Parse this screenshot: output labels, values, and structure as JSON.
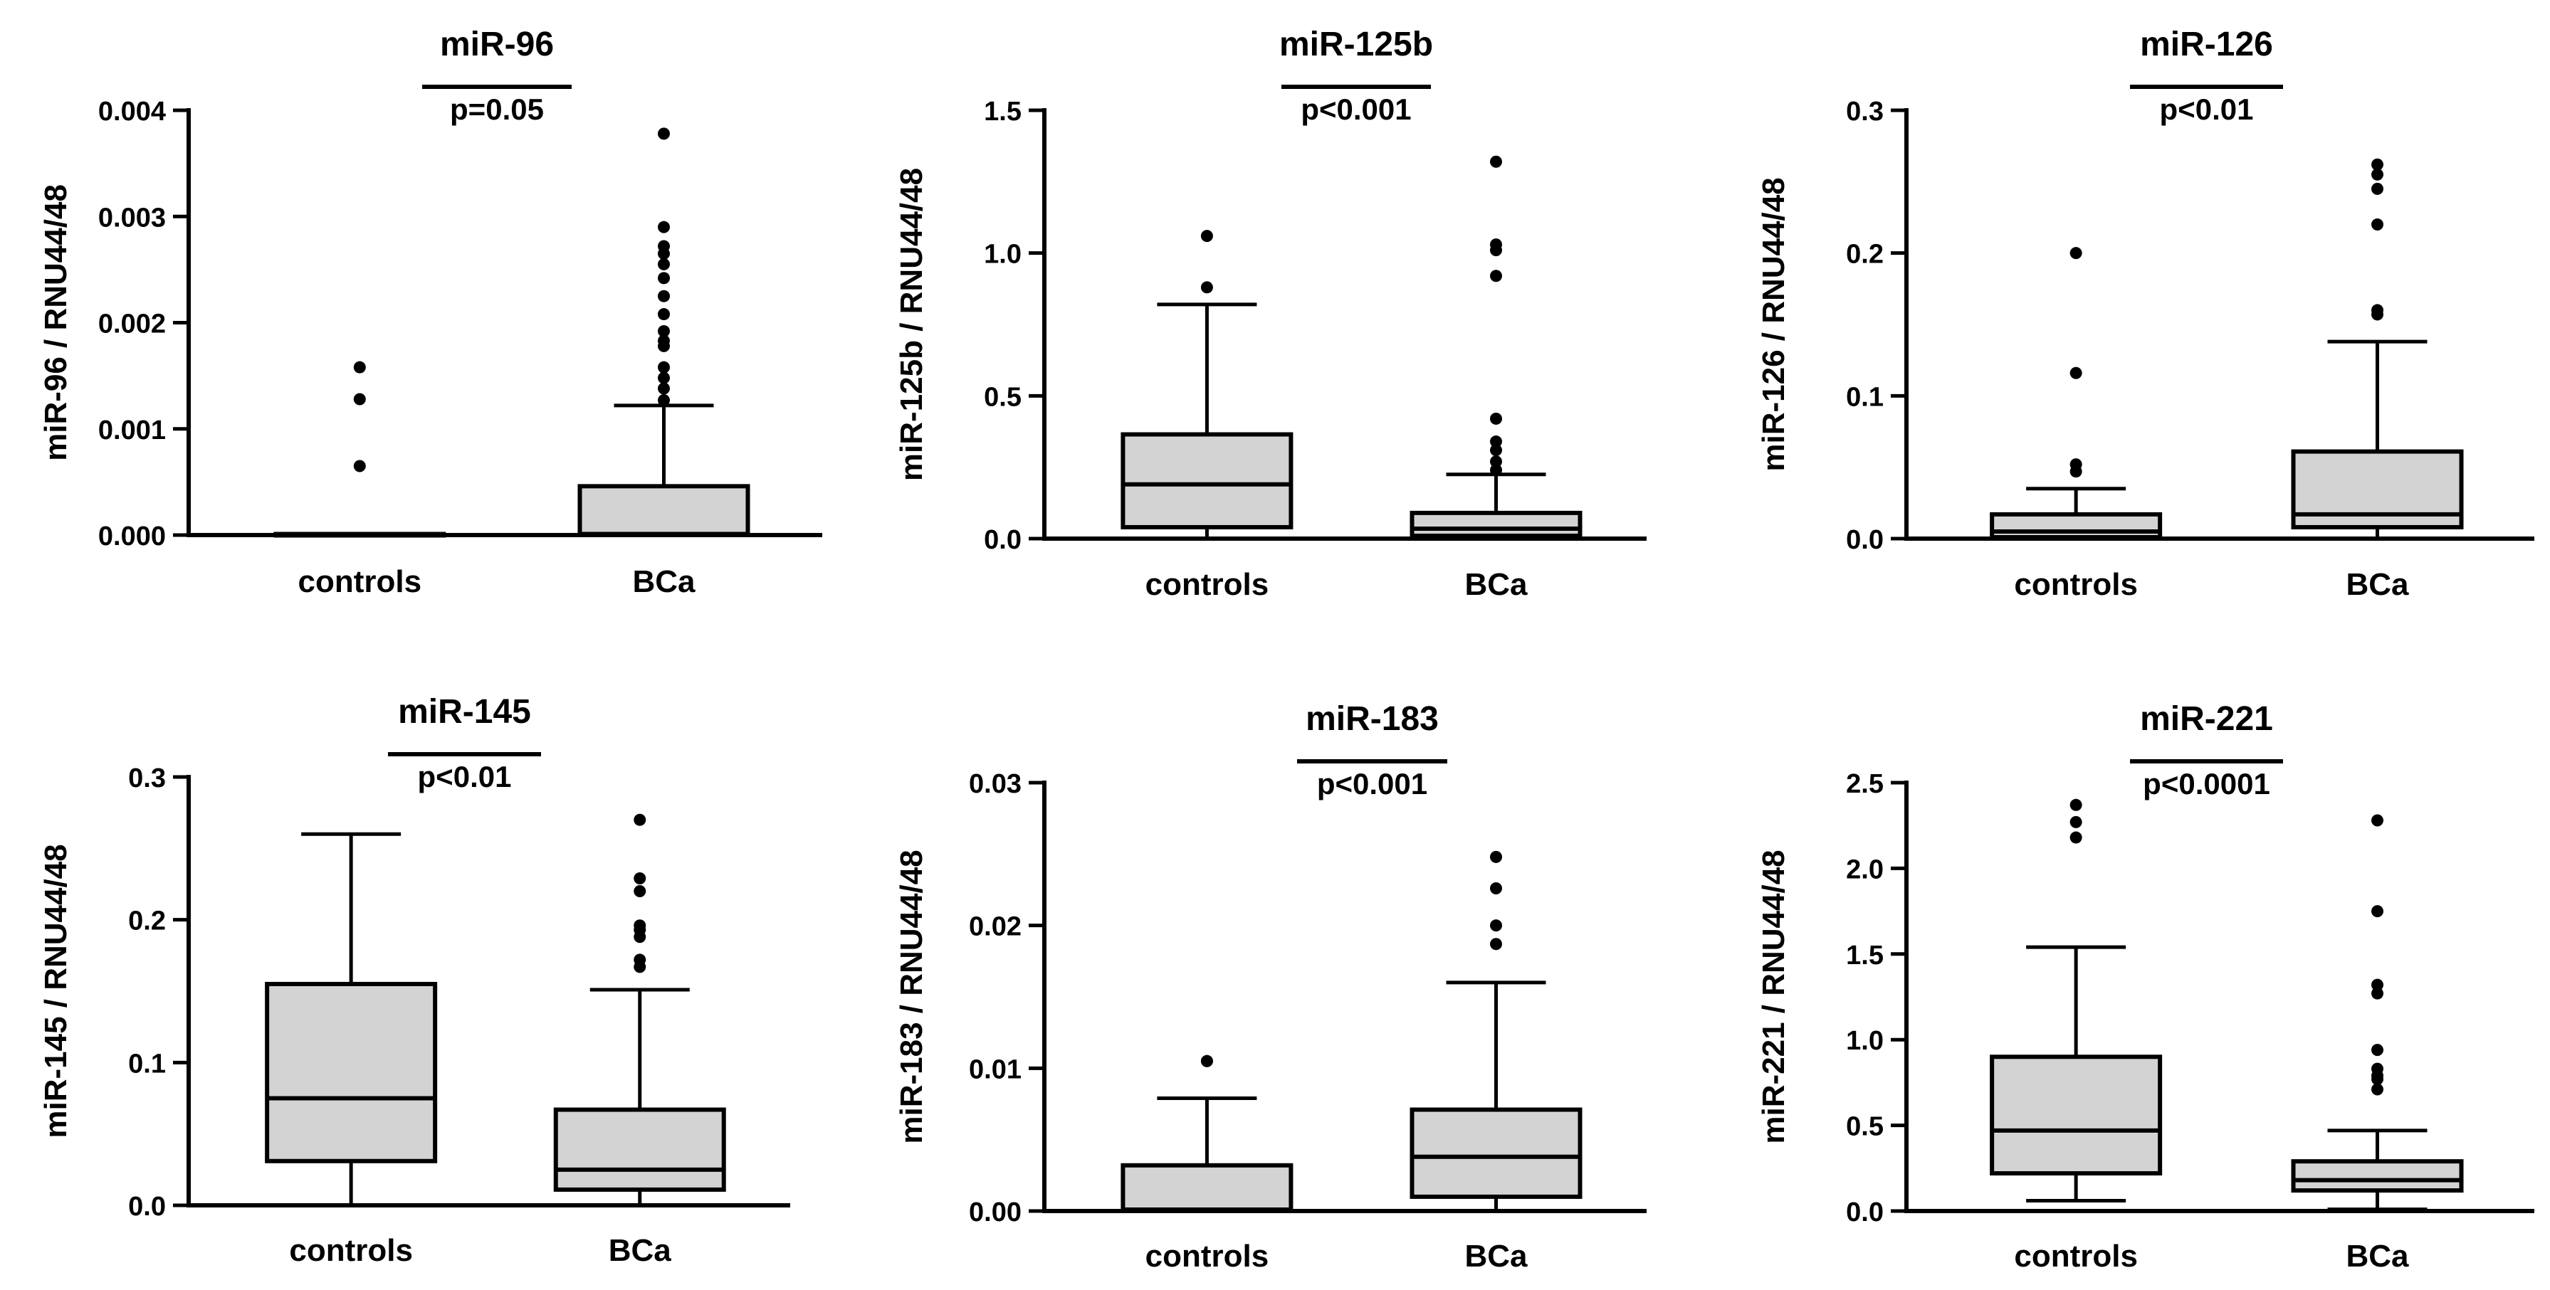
{
  "chart_data": [
    {
      "type": "box",
      "title": "miR-96",
      "ylabel": "miR-96 / RNU44/48",
      "ylim": [
        0,
        0.004
      ],
      "yticks": [
        0,
        0.001,
        0.002,
        0.003,
        0.004
      ],
      "ytick_labels": [
        "0.000",
        "0.001",
        "0.002",
        "0.003",
        "0.004"
      ],
      "p_value": "p=0.05",
      "groups": [
        {
          "name": "controls",
          "q1": 0.0,
          "median": 0.0,
          "q3": 1e-05,
          "whisker_low": 0.0,
          "whisker_high": 1e-05,
          "outliers": [
            0.00065,
            0.00128,
            0.00158
          ]
        },
        {
          "name": "BCa",
          "q1": 0.0,
          "median": 1e-05,
          "q3": 0.00046,
          "whisker_low": 0.0,
          "whisker_high": 0.00122,
          "outliers": [
            0.00127,
            0.00138,
            0.00148,
            0.00158,
            0.00178,
            0.00183,
            0.00192,
            0.00208,
            0.00225,
            0.00242,
            0.00255,
            0.00265,
            0.00272,
            0.0029,
            0.00378
          ]
        }
      ]
    },
    {
      "type": "box",
      "title": "miR-125b",
      "ylabel": "miR-125b / RNU44/48",
      "ylim": [
        0,
        1.5
      ],
      "yticks": [
        0,
        0.5,
        1.0,
        1.5
      ],
      "ytick_labels": [
        "0.0",
        "0.5",
        "1.0",
        "1.5"
      ],
      "p_value": "p<0.001",
      "groups": [
        {
          "name": "controls",
          "q1": 0.04,
          "median": 0.19,
          "q3": 0.365,
          "whisker_low": 0.0,
          "whisker_high": 0.82,
          "outliers": [
            0.88,
            1.06
          ]
        },
        {
          "name": "BCa",
          "q1": 0.01,
          "median": 0.035,
          "q3": 0.09,
          "whisker_low": 0.0,
          "whisker_high": 0.225,
          "outliers": [
            0.24,
            0.27,
            0.31,
            0.34,
            0.42,
            0.92,
            1.01,
            1.03,
            1.32
          ]
        }
      ]
    },
    {
      "type": "box",
      "title": "miR-126",
      "ylabel": "miR-126 / RNU44/48",
      "ylim": [
        0,
        0.3
      ],
      "yticks": [
        0,
        0.1,
        0.2,
        0.3
      ],
      "ytick_labels": [
        "0.0",
        "0.1",
        "0.2",
        "0.3"
      ],
      "p_value": "p<0.01",
      "groups": [
        {
          "name": "controls",
          "q1": 0.001,
          "median": 0.005,
          "q3": 0.017,
          "whisker_low": 0.0,
          "whisker_high": 0.035,
          "outliers": [
            0.047,
            0.052,
            0.116,
            0.2
          ]
        },
        {
          "name": "BCa",
          "q1": 0.008,
          "median": 0.017,
          "q3": 0.061,
          "whisker_low": 0.0,
          "whisker_high": 0.138,
          "outliers": [
            0.157,
            0.16,
            0.22,
            0.245,
            0.255,
            0.262
          ]
        }
      ]
    },
    {
      "type": "box",
      "title": "miR-145",
      "ylabel": "miR-145 / RNU44/48",
      "ylim": [
        0,
        0.3
      ],
      "yticks": [
        0,
        0.1,
        0.2,
        0.3
      ],
      "ytick_labels": [
        "0.0",
        "0.1",
        "0.2",
        "0.3"
      ],
      "p_value": "p<0.01",
      "groups": [
        {
          "name": "controls",
          "q1": 0.031,
          "median": 0.075,
          "q3": 0.155,
          "whisker_low": 0.0,
          "whisker_high": 0.26,
          "outliers": []
        },
        {
          "name": "BCa",
          "q1": 0.011,
          "median": 0.025,
          "q3": 0.067,
          "whisker_low": 0.0,
          "whisker_high": 0.151,
          "outliers": [
            0.167,
            0.172,
            0.188,
            0.193,
            0.196,
            0.22,
            0.229,
            0.27
          ]
        }
      ]
    },
    {
      "type": "box",
      "title": "miR-183",
      "ylabel": "miR-183 / RNU44/48",
      "ylim": [
        0,
        0.03
      ],
      "yticks": [
        0,
        0.01,
        0.02,
        0.03
      ],
      "ytick_labels": [
        "0.00",
        "0.01",
        "0.02",
        "0.03"
      ],
      "p_value": "p<0.001",
      "groups": [
        {
          "name": "controls",
          "q1": 0.0,
          "median": 0.0001,
          "q3": 0.0032,
          "whisker_low": 0.0,
          "whisker_high": 0.0079,
          "outliers": [
            0.0105,
            0.0105
          ]
        },
        {
          "name": "BCa",
          "q1": 0.001,
          "median": 0.0038,
          "q3": 0.0071,
          "whisker_low": 0.0,
          "whisker_high": 0.016,
          "outliers": [
            0.0187,
            0.02,
            0.0226,
            0.0248
          ]
        }
      ]
    },
    {
      "type": "box",
      "title": "miR-221",
      "ylabel": "miR-221 / RNU44/48",
      "ylim": [
        0,
        2.5
      ],
      "yticks": [
        0,
        0.5,
        1.0,
        1.5,
        2.0,
        2.5
      ],
      "ytick_labels": [
        "0.0",
        "0.5",
        "1.0",
        "1.5",
        "2.0",
        "2.5"
      ],
      "p_value": "p<0.0001",
      "groups": [
        {
          "name": "controls",
          "q1": 0.22,
          "median": 0.47,
          "q3": 0.9,
          "whisker_low": 0.06,
          "whisker_high": 1.54,
          "outliers": [
            2.18,
            2.27,
            2.37
          ]
        },
        {
          "name": "BCa",
          "q1": 0.12,
          "median": 0.18,
          "q3": 0.29,
          "whisker_low": 0.01,
          "whisker_high": 0.47,
          "outliers": [
            0.71,
            0.77,
            0.79,
            0.83,
            0.94,
            1.27,
            1.32,
            1.75,
            2.28
          ]
        }
      ]
    }
  ]
}
